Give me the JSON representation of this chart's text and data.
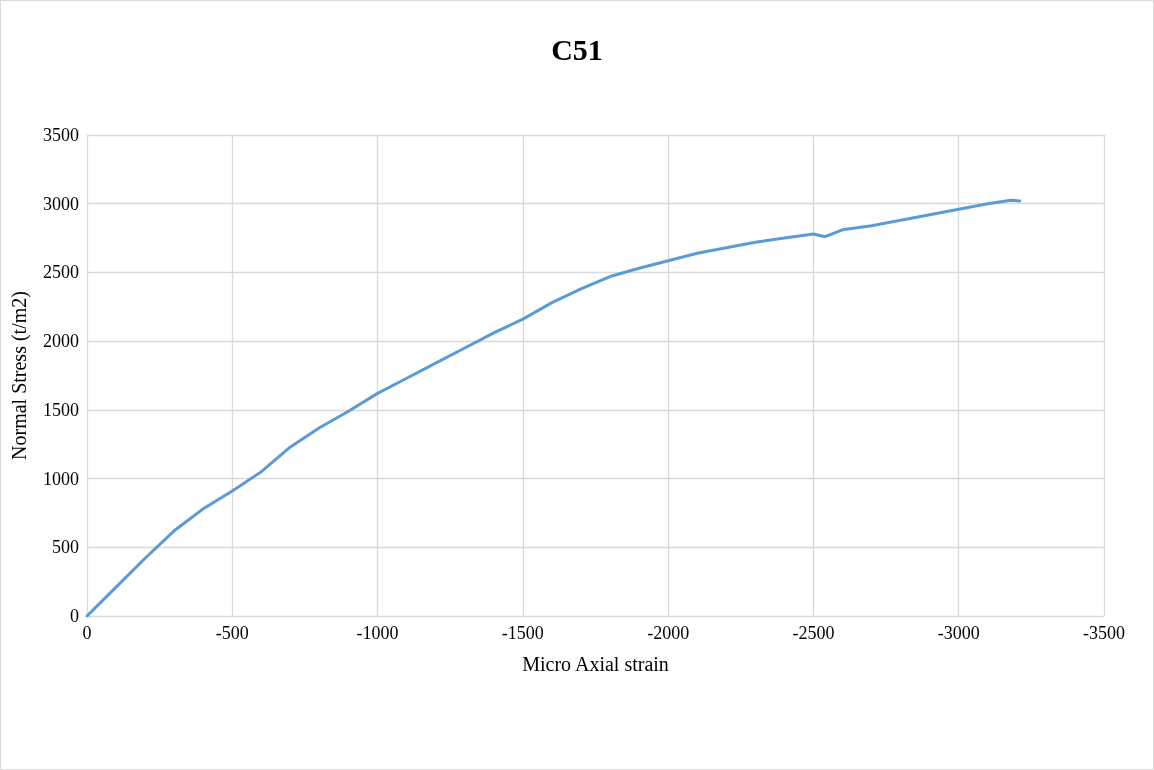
{
  "chart_data": {
    "type": "line",
    "title": "C51",
    "xlabel": "Micro Axial strain",
    "ylabel": "Normal Stress (t/m2)",
    "xlim": [
      0,
      -3500
    ],
    "xticks": [
      0,
      -500,
      -1000,
      -1500,
      -2000,
      -2500,
      -3000,
      -3500
    ],
    "ylim": [
      0,
      3500
    ],
    "yticks": [
      0,
      500,
      1000,
      1500,
      2000,
      2500,
      3000,
      3500
    ],
    "grid": true,
    "marker": "none",
    "line_style": "solid",
    "series": [
      {
        "color": "#5b9bd5",
        "x": [
          0,
          -100,
          -200,
          -300,
          -400,
          -500,
          -600,
          -700,
          -800,
          -900,
          -1000,
          -1100,
          -1200,
          -1300,
          -1400,
          -1500,
          -1600,
          -1700,
          -1800,
          -1900,
          -2000,
          -2100,
          -2200,
          -2300,
          -2400,
          -2500,
          -2540,
          -2600,
          -2700,
          -2800,
          -2900,
          -3000,
          -3100,
          -3180,
          -3210
        ],
        "values": [
          0,
          210,
          420,
          620,
          780,
          910,
          1050,
          1230,
          1370,
          1490,
          1620,
          1730,
          1840,
          1950,
          2060,
          2160,
          2280,
          2380,
          2470,
          2530,
          2585,
          2640,
          2680,
          2720,
          2750,
          2780,
          2760,
          2810,
          2840,
          2880,
          2920,
          2960,
          3000,
          3025,
          3020
        ]
      }
    ]
  }
}
